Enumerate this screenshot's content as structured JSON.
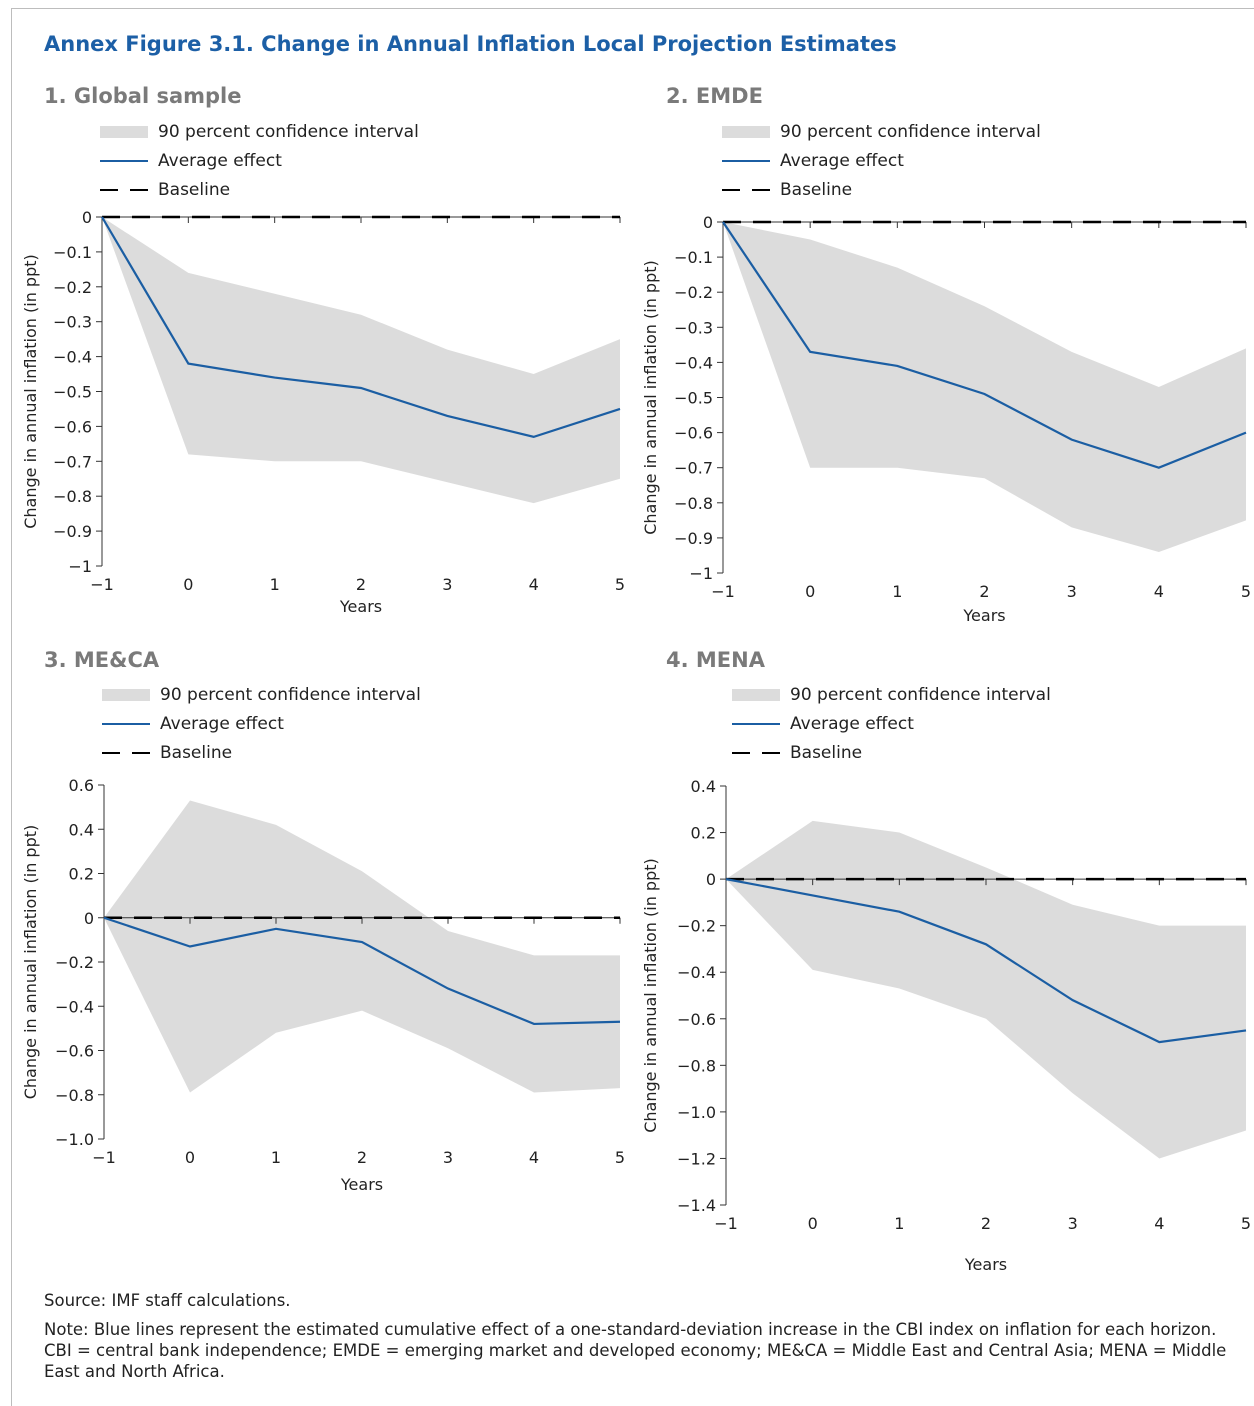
{
  "figure": {
    "title": "Annex Figure 3.1. Change in Annual Inflation Local Projection Estimates"
  },
  "legend": {
    "ci": "90 percent confidence interval",
    "avg": "Average effect",
    "baseline": "Baseline"
  },
  "colors": {
    "title": "#1c5fa6",
    "avg_line": "#1b5ea3",
    "ci_fill": "#dcdcdc",
    "baseline": "#000000"
  },
  "chart_data": [
    {
      "type": "line",
      "title": "1. Global sample",
      "xlabel": "Years",
      "ylabel": "Change in annual inflation (in ppt)",
      "x": [
        -1,
        0,
        1,
        2,
        3,
        4,
        5
      ],
      "xlim": [
        -1,
        5
      ],
      "ylim": [
        -1,
        0
      ],
      "yticks": [
        0,
        -0.1,
        -0.2,
        -0.3,
        -0.4,
        -0.5,
        -0.6,
        -0.7,
        -0.8,
        -0.9,
        -1
      ],
      "ytick_labels": [
        "0",
        "−0.1",
        "−0.2",
        "−0.3",
        "−0.4",
        "−0.5",
        "−0.6",
        "−0.7",
        "−0.8",
        "−0.9",
        "−1"
      ],
      "xtick_labels": [
        "−1",
        "0",
        "1",
        "2",
        "3",
        "4",
        "5"
      ],
      "series": [
        {
          "name": "Average effect",
          "values": [
            0,
            -0.42,
            -0.46,
            -0.49,
            -0.57,
            -0.63,
            -0.55
          ]
        },
        {
          "name": "Baseline",
          "values": [
            0,
            0,
            0,
            0,
            0,
            0,
            0
          ]
        }
      ],
      "ci_upper": [
        0,
        -0.16,
        -0.22,
        -0.28,
        -0.38,
        -0.45,
        -0.35
      ],
      "ci_lower": [
        0,
        -0.68,
        -0.7,
        -0.7,
        -0.76,
        -0.82,
        -0.75
      ],
      "grid": false,
      "legend_position": "top-left"
    },
    {
      "type": "line",
      "title": "2. EMDE",
      "xlabel": "Years",
      "ylabel": "Change in annual inflation (in ppt)",
      "x": [
        -1,
        0,
        1,
        2,
        3,
        4,
        5
      ],
      "xlim": [
        -1,
        5
      ],
      "ylim": [
        -1,
        0
      ],
      "yticks": [
        0,
        -0.1,
        -0.2,
        -0.3,
        -0.4,
        -0.5,
        -0.6,
        -0.7,
        -0.8,
        -0.9,
        -1
      ],
      "ytick_labels": [
        "0",
        "−0.1",
        "−0.2",
        "−0.3",
        "−0.4",
        "−0.5",
        "−0.6",
        "−0.7",
        "−0.8",
        "−0.9",
        "−1"
      ],
      "xtick_labels": [
        "−1",
        "0",
        "1",
        "2",
        "3",
        "4",
        "5"
      ],
      "series": [
        {
          "name": "Average effect",
          "values": [
            0,
            -0.37,
            -0.41,
            -0.49,
            -0.62,
            -0.7,
            -0.6
          ]
        },
        {
          "name": "Baseline",
          "values": [
            0,
            0,
            0,
            0,
            0,
            0,
            0
          ]
        }
      ],
      "ci_upper": [
        0,
        -0.05,
        -0.13,
        -0.24,
        -0.37,
        -0.47,
        -0.36
      ],
      "ci_lower": [
        0,
        -0.7,
        -0.7,
        -0.73,
        -0.87,
        -0.94,
        -0.85
      ],
      "grid": false,
      "legend_position": "top-left"
    },
    {
      "type": "line",
      "title": "3. ME&CA",
      "xlabel": "Years",
      "ylabel": "Change in annual inflation (in ppt)",
      "x": [
        -1,
        0,
        1,
        2,
        3,
        4,
        5
      ],
      "xlim": [
        -1,
        5
      ],
      "ylim": [
        -1,
        0.6
      ],
      "yticks": [
        0.6,
        0.4,
        0.2,
        0,
        -0.2,
        -0.4,
        -0.6,
        -0.8,
        -1
      ],
      "ytick_labels": [
        "0.6",
        "0.4",
        "0.2",
        "0",
        "−0.2",
        "−0.4",
        "−0.6",
        "−0.8",
        "−1.0"
      ],
      "xtick_labels": [
        "−1",
        "0",
        "1",
        "2",
        "3",
        "4",
        "5"
      ],
      "series": [
        {
          "name": "Average effect",
          "values": [
            0,
            -0.13,
            -0.05,
            -0.11,
            -0.32,
            -0.48,
            -0.47
          ]
        },
        {
          "name": "Baseline",
          "values": [
            0,
            0,
            0,
            0,
            0,
            0,
            0
          ]
        }
      ],
      "ci_upper": [
        0,
        0.53,
        0.42,
        0.21,
        -0.06,
        -0.17,
        -0.17
      ],
      "ci_lower": [
        0,
        -0.79,
        -0.52,
        -0.42,
        -0.59,
        -0.79,
        -0.77
      ],
      "grid": false,
      "legend_position": "top-left"
    },
    {
      "type": "line",
      "title": "4. MENA",
      "xlabel": "Years",
      "ylabel": "Change in annual inflation (in ppt)",
      "x": [
        -1,
        0,
        1,
        2,
        3,
        4,
        5
      ],
      "xlim": [
        -1,
        5
      ],
      "ylim": [
        -1.4,
        0.4
      ],
      "yticks": [
        0.4,
        0.2,
        0,
        -0.2,
        -0.4,
        -0.6,
        -0.8,
        -1.0,
        -1.2,
        -1.4
      ],
      "ytick_labels": [
        "0.4",
        "0.2",
        "0",
        "−0.2",
        "−0.4",
        "−0.6",
        "−0.8",
        "−1.0",
        "−1.2",
        "−1.4"
      ],
      "xtick_labels": [
        "−1",
        "0",
        "1",
        "2",
        "3",
        "4",
        "5"
      ],
      "series": [
        {
          "name": "Average effect",
          "values": [
            0,
            -0.07,
            -0.14,
            -0.28,
            -0.52,
            -0.7,
            -0.65
          ]
        },
        {
          "name": "Baseline",
          "values": [
            0,
            0,
            0,
            0,
            0,
            0,
            0
          ]
        }
      ],
      "ci_upper": [
        0,
        0.25,
        0.2,
        0.05,
        -0.11,
        -0.2,
        -0.2
      ],
      "ci_lower": [
        0,
        -0.39,
        -0.47,
        -0.6,
        -0.92,
        -1.2,
        -1.08
      ],
      "grid": false,
      "legend_position": "top-left"
    }
  ],
  "notes": {
    "source": "Source: IMF staff calculations.",
    "note": "Note: Blue lines represent the estimated cumulative effect of a one-standard-deviation increase in the CBI index on inflation for each horizon. CBI = central bank independence; EMDE = emerging market and developed economy; ME&CA = Middle East and Central Asia; MENA = Middle East and North Africa."
  }
}
